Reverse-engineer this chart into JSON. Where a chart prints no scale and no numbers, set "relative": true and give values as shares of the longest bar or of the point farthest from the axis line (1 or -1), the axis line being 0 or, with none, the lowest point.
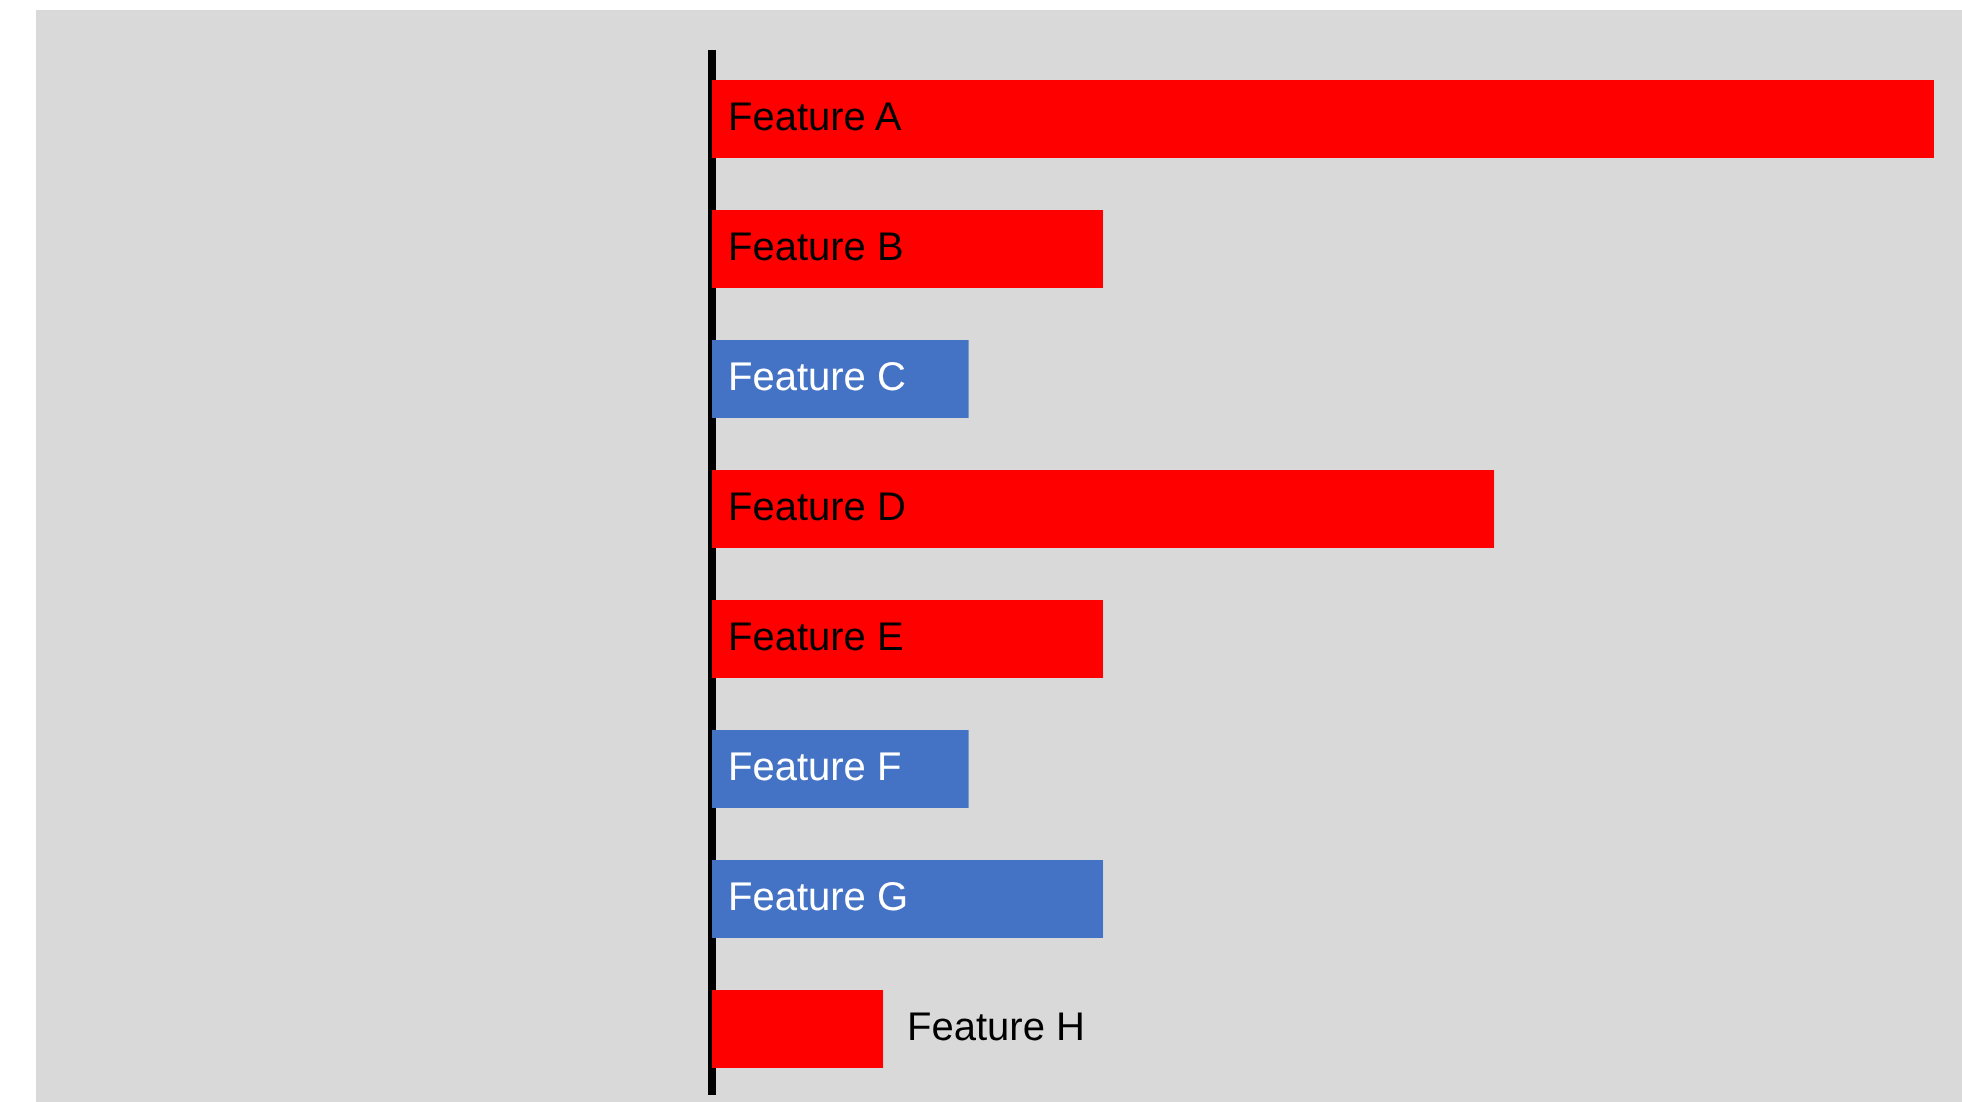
{
  "chart_data": {
    "type": "bar",
    "orientation": "horizontal",
    "relative": true,
    "categories": [
      "Feature A",
      "Feature B",
      "Feature C",
      "Feature D",
      "Feature E",
      "Feature F",
      "Feature G",
      "Feature H"
    ],
    "values": [
      1,
      0.32,
      0.21,
      0.64,
      0.32,
      0.21,
      0.32,
      0.14
    ],
    "colors": [
      "#ff0000",
      "#ff0000",
      "#4472c4",
      "#ff0000",
      "#ff0000",
      "#4472c4",
      "#4472c4",
      "#ff0000"
    ],
    "grid": false,
    "legend": false
  }
}
